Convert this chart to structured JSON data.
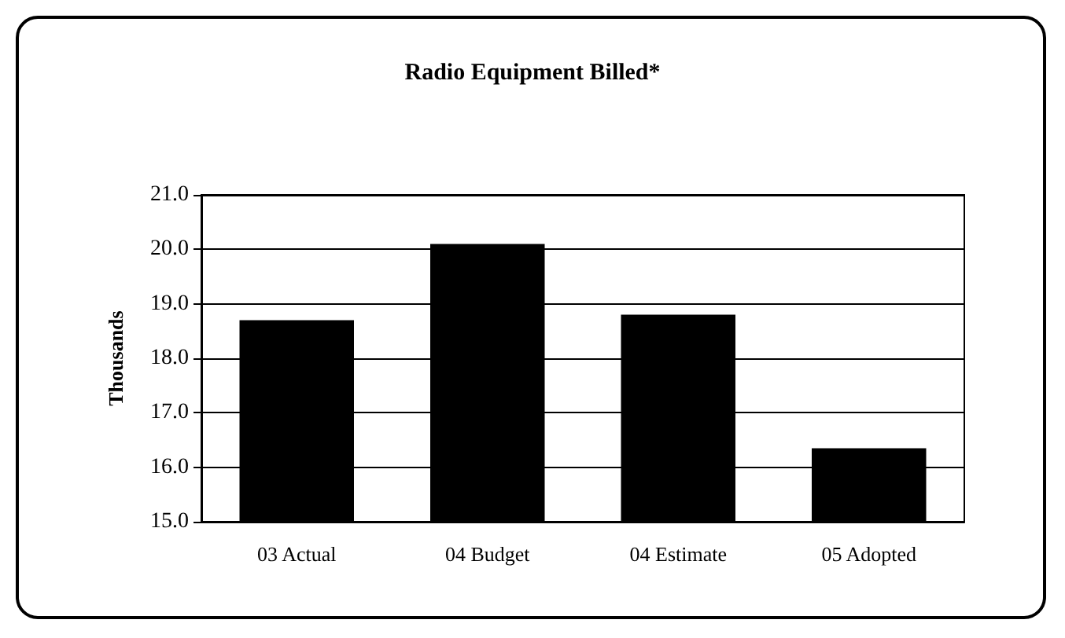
{
  "chart_data": {
    "type": "bar",
    "title": "Radio Equipment Billed*",
    "ylabel": "Thousands",
    "categories": [
      "03 Actual",
      "04 Budget",
      "04 Estimate",
      "05 Adopted"
    ],
    "values": [
      18.7,
      20.1,
      18.8,
      16.35
    ],
    "color": "#000000",
    "ylim": [
      15,
      21
    ],
    "yticks": [
      {
        "value": 15,
        "label": "15.0"
      },
      {
        "value": 16,
        "label": "16.0"
      },
      {
        "value": 17,
        "label": "17.0"
      },
      {
        "value": 18,
        "label": "18.0"
      },
      {
        "value": 19,
        "label": "19.0"
      },
      {
        "value": 20,
        "label": "20.0"
      },
      {
        "value": 21,
        "label": "21.0"
      }
    ],
    "grid": true
  }
}
